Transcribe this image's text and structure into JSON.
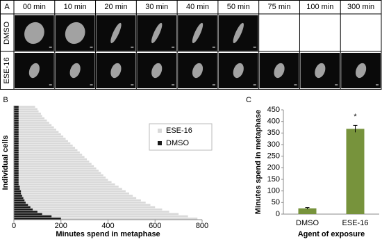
{
  "panel_a": {
    "label": "A",
    "times": [
      "00 min",
      "10 min",
      "20 min",
      "30 min",
      "40 min",
      "50 min",
      "75 min",
      "100 min",
      "300 min"
    ],
    "rows": [
      "DMSO",
      "ESE-16"
    ]
  },
  "chart_data": [
    {
      "type": "hbar",
      "panel_label": "B",
      "x_label": "Minutes spend in metaphase",
      "y_label": "Individual cells",
      "xlim": [
        0,
        800
      ],
      "xticks": [
        0,
        200,
        400,
        600,
        800
      ],
      "legend": "upper right",
      "series": [
        {
          "name": "ESE-16",
          "color": "#d9d9d9",
          "values": [
            90,
            100,
            105,
            115,
            120,
            130,
            140,
            150,
            160,
            170,
            180,
            190,
            200,
            210,
            220,
            230,
            240,
            250,
            260,
            270,
            280,
            290,
            300,
            310,
            320,
            330,
            340,
            350,
            360,
            370,
            380,
            390,
            400,
            415,
            430,
            445,
            460,
            475,
            490,
            505,
            520,
            540,
            560,
            580,
            600,
            630,
            660,
            700,
            740,
            780
          ]
        },
        {
          "name": "DMSO",
          "color": "#1a1a1a",
          "values": [
            20,
            20,
            20,
            20,
            20,
            20,
            20,
            20,
            20,
            20,
            20,
            20,
            20,
            20,
            20,
            20,
            20,
            20,
            20,
            20,
            20,
            20,
            20,
            20,
            20,
            20,
            20,
            20,
            20,
            20,
            20,
            20,
            20,
            20,
            20,
            25,
            25,
            30,
            30,
            35,
            40,
            45,
            50,
            60,
            70,
            80,
            100,
            120,
            160,
            200
          ]
        }
      ]
    },
    {
      "type": "bar",
      "panel_label": "C",
      "x_label": "Agent of exposure",
      "y_label": "Minutes spend in metaphase",
      "categories": [
        "DMSO",
        "ESE-16"
      ],
      "values": [
        25,
        368
      ],
      "errors": [
        3,
        15
      ],
      "color": "#77933c",
      "ylim": [
        0,
        450
      ],
      "yticks": [
        0,
        50,
        100,
        150,
        200,
        250,
        300,
        350,
        400,
        450
      ],
      "annotation": "*"
    }
  ]
}
